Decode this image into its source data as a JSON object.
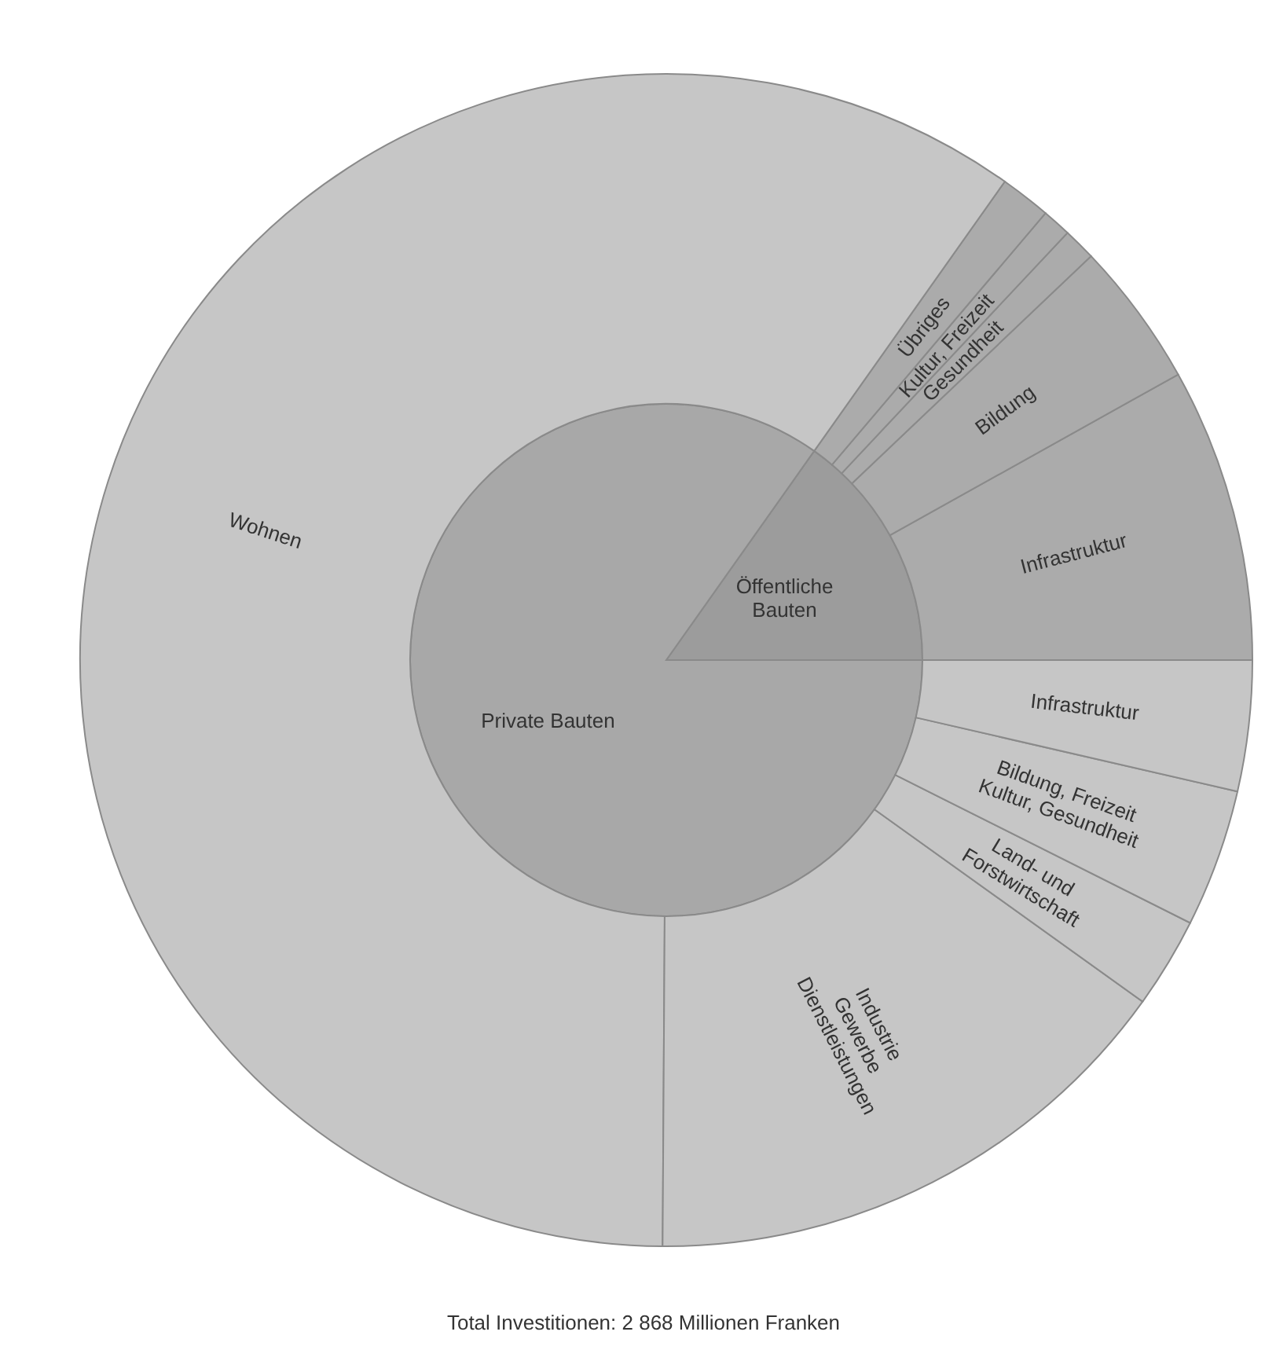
{
  "chart_data": [
    {
      "type": "pie",
      "categories": [
        "Öffentliche\nBauten",
        "Private Bauten"
      ],
      "values": [
        15.2,
        84.8
      ],
      "colors": [
        "#9c9c9c",
        "#a8a8a8"
      ]
    },
    {
      "type": "donut",
      "categories": [
        "Infrastruktur",
        "Bildung",
        "Gesundheit",
        "Kultur, Freizeit",
        "Übriges",
        "Wohnen",
        "Industrie\nGewerbe\nDienstleistungen",
        "Land- und\nForstwirtschaft",
        "Bildung, Freizeit\nKultur, Gesundheit",
        "Infrastruktur"
      ],
      "values": [
        8.1,
        4.0,
        0.9,
        0.8,
        1.4,
        59.7,
        15.2,
        2.5,
        3.8,
        3.6
      ],
      "colors": [
        "#ababab",
        "#ababab",
        "#ababab",
        "#ababab",
        "#ababab",
        "#c6c6c6",
        "#c6c6c6",
        "#c6c6c6",
        "#c6c6c6",
        "#c6c6c6"
      ],
      "annotations": [
        "Total Investitionen: 2 868 Millionen Franken"
      ]
    }
  ]
}
